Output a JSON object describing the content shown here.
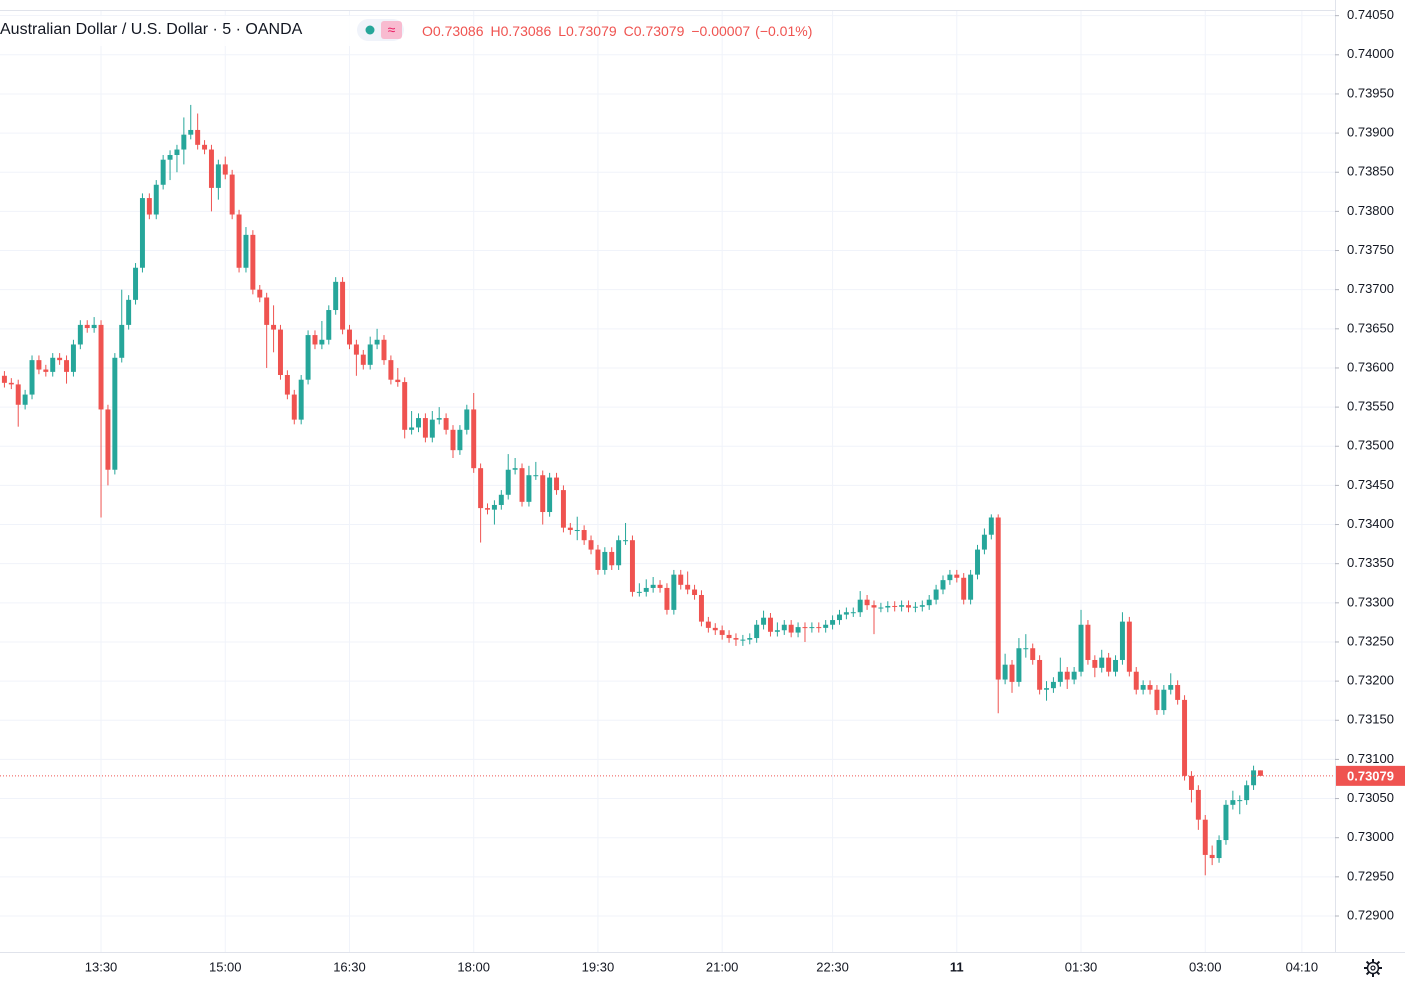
{
  "chart_data": {
    "type": "candlestick",
    "title": "Australian Dollar / U.S. Dollar · 5 · OANDA",
    "legend": {
      "open_key": "O",
      "open": 0.73086,
      "high_key": "H",
      "high": 0.73086,
      "low_key": "L",
      "low": 0.73079,
      "close_key": "C",
      "close": 0.73079,
      "change": {
        "value": -7e-05,
        "label": "−0.00007"
      },
      "change_pct": {
        "value": -0.01,
        "label": "(−0.01%)"
      }
    },
    "up_color": "#26a69a",
    "down_color": "#ef5350",
    "grid": true,
    "last_price": 0.73079,
    "ylim": [
      0.72854,
      0.7407
    ],
    "xlim": [
      -0.64,
      192.8
    ],
    "yticks": [
      {
        "value": 0.729,
        "label": "0.72900"
      },
      {
        "value": 0.7295,
        "label": "0.72950"
      },
      {
        "value": 0.73,
        "label": "0.73000"
      },
      {
        "value": 0.7305,
        "label": "0.73050"
      },
      {
        "value": 0.731,
        "label": "0.73100"
      },
      {
        "value": 0.7315,
        "label": "0.73150"
      },
      {
        "value": 0.732,
        "label": "0.73200"
      },
      {
        "value": 0.7325,
        "label": "0.73250"
      },
      {
        "value": 0.733,
        "label": "0.73300"
      },
      {
        "value": 0.7335,
        "label": "0.73350"
      },
      {
        "value": 0.734,
        "label": "0.73400"
      },
      {
        "value": 0.7345,
        "label": "0.73450"
      },
      {
        "value": 0.735,
        "label": "0.73500"
      },
      {
        "value": 0.7355,
        "label": "0.73550"
      },
      {
        "value": 0.736,
        "label": "0.73600"
      },
      {
        "value": 0.7365,
        "label": "0.73650"
      },
      {
        "value": 0.737,
        "label": "0.73700"
      },
      {
        "value": 0.7375,
        "label": "0.73750"
      },
      {
        "value": 0.738,
        "label": "0.73800"
      },
      {
        "value": 0.7385,
        "label": "0.73850"
      },
      {
        "value": 0.739,
        "label": "0.73900"
      },
      {
        "value": 0.7395,
        "label": "0.73950"
      },
      {
        "value": 0.74,
        "label": "0.74000"
      },
      {
        "value": 0.7405,
        "label": "0.74050"
      }
    ],
    "xticks": [
      {
        "value": 14,
        "label": "13:30"
      },
      {
        "value": 32,
        "label": "15:00"
      },
      {
        "value": 50,
        "label": "16:30"
      },
      {
        "value": 68,
        "label": "18:00"
      },
      {
        "value": 86,
        "label": "19:30"
      },
      {
        "value": 104,
        "label": "21:00"
      },
      {
        "value": 120,
        "label": "22:30"
      },
      {
        "value": 138,
        "label": "11"
      },
      {
        "value": 156,
        "label": "01:30"
      },
      {
        "value": 174,
        "label": "03:00"
      },
      {
        "value": 188,
        "label": "04:10"
      }
    ],
    "candles": [
      [
        0.7359,
        0.73596,
        0.73575,
        0.73581
      ],
      [
        0.73581,
        0.73587,
        0.73573,
        0.73579
      ],
      [
        0.73579,
        0.73585,
        0.73525,
        0.73553
      ],
      [
        0.73553,
        0.73572,
        0.73547,
        0.73566
      ],
      [
        0.73566,
        0.73616,
        0.7356,
        0.7361
      ],
      [
        0.7361,
        0.73616,
        0.73592,
        0.73598
      ],
      [
        0.73598,
        0.73604,
        0.73589,
        0.73595
      ],
      [
        0.73595,
        0.73619,
        0.73589,
        0.73613
      ],
      [
        0.73613,
        0.73619,
        0.73604,
        0.7361
      ],
      [
        0.7361,
        0.73616,
        0.7358,
        0.73595
      ],
      [
        0.73595,
        0.73636,
        0.73589,
        0.7363
      ],
      [
        0.7363,
        0.73661,
        0.73624,
        0.73655
      ],
      [
        0.73655,
        0.73661,
        0.73645,
        0.73651
      ],
      [
        0.73651,
        0.73665,
        0.73645,
        0.73655
      ],
      [
        0.73655,
        0.73661,
        0.73409,
        0.73547
      ],
      [
        0.73547,
        0.73553,
        0.7345,
        0.7347
      ],
      [
        0.7347,
        0.73619,
        0.73464,
        0.73613
      ],
      [
        0.73613,
        0.737,
        0.73607,
        0.73655
      ],
      [
        0.73655,
        0.73693,
        0.73649,
        0.73687
      ],
      [
        0.73687,
        0.73734,
        0.73681,
        0.73728
      ],
      [
        0.73728,
        0.73823,
        0.73722,
        0.73817
      ],
      [
        0.73817,
        0.73823,
        0.7379,
        0.73796
      ],
      [
        0.73796,
        0.7384,
        0.7379,
        0.73834
      ],
      [
        0.73834,
        0.73872,
        0.73828,
        0.73866
      ],
      [
        0.73866,
        0.73878,
        0.7384,
        0.73872
      ],
      [
        0.73872,
        0.73885,
        0.7385,
        0.73879
      ],
      [
        0.73879,
        0.7392,
        0.7386,
        0.73898
      ],
      [
        0.73898,
        0.73936,
        0.73892,
        0.73904
      ],
      [
        0.73904,
        0.73925,
        0.73879,
        0.73885
      ],
      [
        0.73885,
        0.73891,
        0.73873,
        0.73879
      ],
      [
        0.73879,
        0.73885,
        0.738,
        0.7383
      ],
      [
        0.7383,
        0.73866,
        0.73815,
        0.7386
      ],
      [
        0.7386,
        0.7387,
        0.73841,
        0.73847
      ],
      [
        0.73847,
        0.73853,
        0.7379,
        0.73796
      ],
      [
        0.73796,
        0.73802,
        0.73722,
        0.73728
      ],
      [
        0.73728,
        0.7378,
        0.73722,
        0.7377
      ],
      [
        0.7377,
        0.73776,
        0.73694,
        0.737
      ],
      [
        0.737,
        0.73706,
        0.73684,
        0.7369
      ],
      [
        0.7369,
        0.73696,
        0.736,
        0.73655
      ],
      [
        0.73655,
        0.7368,
        0.7362,
        0.73649
      ],
      [
        0.73649,
        0.73655,
        0.73585,
        0.73591
      ],
      [
        0.73591,
        0.73597,
        0.7356,
        0.73566
      ],
      [
        0.73566,
        0.73572,
        0.73528,
        0.73534
      ],
      [
        0.73534,
        0.73591,
        0.73528,
        0.73585
      ],
      [
        0.73585,
        0.73648,
        0.73579,
        0.73642
      ],
      [
        0.73642,
        0.73648,
        0.73624,
        0.7363
      ],
      [
        0.7363,
        0.7366,
        0.73624,
        0.73636
      ],
      [
        0.73636,
        0.7368,
        0.7363,
        0.73674
      ],
      [
        0.73674,
        0.73716,
        0.73668,
        0.7371
      ],
      [
        0.7371,
        0.73716,
        0.73643,
        0.73649
      ],
      [
        0.73649,
        0.73655,
        0.73624,
        0.7363
      ],
      [
        0.7363,
        0.73636,
        0.7359,
        0.73617
      ],
      [
        0.73617,
        0.73623,
        0.73598,
        0.73604
      ],
      [
        0.73604,
        0.7364,
        0.73598,
        0.7363
      ],
      [
        0.7363,
        0.7365,
        0.73624,
        0.73636
      ],
      [
        0.73636,
        0.73642,
        0.73604,
        0.7361
      ],
      [
        0.7361,
        0.73616,
        0.73579,
        0.73585
      ],
      [
        0.73585,
        0.736,
        0.73576,
        0.73582
      ],
      [
        0.73582,
        0.73588,
        0.7351,
        0.73521
      ],
      [
        0.73521,
        0.73545,
        0.73515,
        0.73524
      ],
      [
        0.73524,
        0.73542,
        0.73518,
        0.73536
      ],
      [
        0.73536,
        0.73542,
        0.73505,
        0.73511
      ],
      [
        0.73511,
        0.73545,
        0.73505,
        0.73534
      ],
      [
        0.73534,
        0.7355,
        0.73528,
        0.73536
      ],
      [
        0.73536,
        0.73542,
        0.73515,
        0.73521
      ],
      [
        0.73521,
        0.73527,
        0.73485,
        0.73495
      ],
      [
        0.73495,
        0.73527,
        0.73489,
        0.73521
      ],
      [
        0.73521,
        0.73553,
        0.73515,
        0.73547
      ],
      [
        0.73547,
        0.73568,
        0.73466,
        0.73472
      ],
      [
        0.73472,
        0.73478,
        0.73377,
        0.73421
      ],
      [
        0.73421,
        0.73427,
        0.73413,
        0.73419
      ],
      [
        0.73419,
        0.73431,
        0.734,
        0.73425
      ],
      [
        0.73425,
        0.73444,
        0.73419,
        0.73438
      ],
      [
        0.73438,
        0.7349,
        0.73432,
        0.7347
      ],
      [
        0.7347,
        0.73485,
        0.73464,
        0.73472
      ],
      [
        0.73472,
        0.73478,
        0.73423,
        0.73429
      ],
      [
        0.73429,
        0.73475,
        0.73423,
        0.73463
      ],
      [
        0.73463,
        0.7348,
        0.73457,
        0.73463
      ],
      [
        0.73463,
        0.73469,
        0.734,
        0.73416
      ],
      [
        0.73416,
        0.73466,
        0.7341,
        0.7346
      ],
      [
        0.7346,
        0.73466,
        0.73438,
        0.73444
      ],
      [
        0.73444,
        0.7345,
        0.7339,
        0.73396
      ],
      [
        0.73396,
        0.73402,
        0.73387,
        0.73393
      ],
      [
        0.73393,
        0.7341,
        0.7338,
        0.73393
      ],
      [
        0.73393,
        0.73399,
        0.73374,
        0.7338
      ],
      [
        0.7338,
        0.73386,
        0.73362,
        0.73368
      ],
      [
        0.73368,
        0.73374,
        0.73336,
        0.73342
      ],
      [
        0.73342,
        0.73371,
        0.73336,
        0.73365
      ],
      [
        0.73365,
        0.73371,
        0.73342,
        0.73348
      ],
      [
        0.73348,
        0.73386,
        0.73342,
        0.7338
      ],
      [
        0.7338,
        0.73402,
        0.73374,
        0.7338
      ],
      [
        0.7338,
        0.73386,
        0.73308,
        0.73314
      ],
      [
        0.73314,
        0.73325,
        0.73308,
        0.73314
      ],
      [
        0.73314,
        0.7333,
        0.73308,
        0.73319
      ],
      [
        0.73319,
        0.73333,
        0.73313,
        0.73323
      ],
      [
        0.73323,
        0.73329,
        0.73313,
        0.73319
      ],
      [
        0.73319,
        0.73325,
        0.73285,
        0.73291
      ],
      [
        0.73291,
        0.73342,
        0.73285,
        0.73336
      ],
      [
        0.73336,
        0.73342,
        0.73317,
        0.73323
      ],
      [
        0.73323,
        0.7334,
        0.73311,
        0.73317
      ],
      [
        0.73317,
        0.73323,
        0.73304,
        0.7331
      ],
      [
        0.7331,
        0.73316,
        0.7327,
        0.73276
      ],
      [
        0.73276,
        0.73282,
        0.73262,
        0.73268
      ],
      [
        0.73268,
        0.73274,
        0.73259,
        0.73265
      ],
      [
        0.73265,
        0.73271,
        0.73253,
        0.73259
      ],
      [
        0.73259,
        0.73265,
        0.73249,
        0.73255
      ],
      [
        0.73255,
        0.73261,
        0.73245,
        0.73253
      ],
      [
        0.73253,
        0.73259,
        0.73245,
        0.73253
      ],
      [
        0.73253,
        0.73261,
        0.73247,
        0.73255
      ],
      [
        0.73255,
        0.73278,
        0.73249,
        0.73272
      ],
      [
        0.73272,
        0.7329,
        0.73266,
        0.73281
      ],
      [
        0.73281,
        0.73287,
        0.73257,
        0.73263
      ],
      [
        0.73263,
        0.73275,
        0.73257,
        0.73265
      ],
      [
        0.73265,
        0.73278,
        0.73259,
        0.73272
      ],
      [
        0.73272,
        0.73278,
        0.73256,
        0.73262
      ],
      [
        0.73262,
        0.73275,
        0.73256,
        0.73269
      ],
      [
        0.73269,
        0.73275,
        0.7325,
        0.73268
      ],
      [
        0.73268,
        0.73275,
        0.73262,
        0.73269
      ],
      [
        0.73269,
        0.73275,
        0.73262,
        0.73268
      ],
      [
        0.73268,
        0.73278,
        0.73262,
        0.73272
      ],
      [
        0.73272,
        0.73284,
        0.73266,
        0.73278
      ],
      [
        0.73278,
        0.73291,
        0.73272,
        0.73285
      ],
      [
        0.73285,
        0.73294,
        0.73279,
        0.73288
      ],
      [
        0.73288,
        0.73294,
        0.73282,
        0.73288
      ],
      [
        0.73288,
        0.73315,
        0.73282,
        0.73304
      ],
      [
        0.73304,
        0.7331,
        0.73291,
        0.73297
      ],
      [
        0.73297,
        0.73303,
        0.7326,
        0.73294
      ],
      [
        0.73294,
        0.733,
        0.73288,
        0.73294
      ],
      [
        0.73294,
        0.73302,
        0.73288,
        0.73296
      ],
      [
        0.73296,
        0.73302,
        0.73289,
        0.73295
      ],
      [
        0.73295,
        0.73303,
        0.73289,
        0.73297
      ],
      [
        0.73297,
        0.73303,
        0.73288,
        0.73294
      ],
      [
        0.73294,
        0.73301,
        0.73288,
        0.73295
      ],
      [
        0.73295,
        0.73303,
        0.73289,
        0.73297
      ],
      [
        0.73297,
        0.7331,
        0.73291,
        0.73304
      ],
      [
        0.73304,
        0.73323,
        0.73298,
        0.73317
      ],
      [
        0.73317,
        0.73335,
        0.73311,
        0.73329
      ],
      [
        0.73329,
        0.73342,
        0.73323,
        0.73336
      ],
      [
        0.73336,
        0.73342,
        0.73326,
        0.73332
      ],
      [
        0.73332,
        0.73338,
        0.73298,
        0.73304
      ],
      [
        0.73304,
        0.73342,
        0.73298,
        0.73336
      ],
      [
        0.73336,
        0.73374,
        0.7333,
        0.73368
      ],
      [
        0.73368,
        0.73395,
        0.73362,
        0.73387
      ],
      [
        0.73387,
        0.73413,
        0.73381,
        0.73409
      ],
      [
        0.73409,
        0.73413,
        0.73159,
        0.73202
      ],
      [
        0.73202,
        0.73235,
        0.73196,
        0.73221
      ],
      [
        0.73221,
        0.73227,
        0.73185,
        0.73199
      ],
      [
        0.73199,
        0.73255,
        0.73193,
        0.73242
      ],
      [
        0.73242,
        0.7326,
        0.7323,
        0.73242
      ],
      [
        0.73242,
        0.73248,
        0.73221,
        0.73227
      ],
      [
        0.73227,
        0.73233,
        0.73183,
        0.73189
      ],
      [
        0.73189,
        0.732,
        0.73175,
        0.73191
      ],
      [
        0.73191,
        0.73205,
        0.73185,
        0.73199
      ],
      [
        0.73199,
        0.7323,
        0.73193,
        0.73212
      ],
      [
        0.73212,
        0.73218,
        0.7319,
        0.73202
      ],
      [
        0.73202,
        0.73218,
        0.73196,
        0.73212
      ],
      [
        0.73212,
        0.73291,
        0.73206,
        0.73272
      ],
      [
        0.73272,
        0.73278,
        0.73221,
        0.73227
      ],
      [
        0.73227,
        0.73233,
        0.73205,
        0.73217
      ],
      [
        0.73217,
        0.7324,
        0.73211,
        0.7323
      ],
      [
        0.7323,
        0.73236,
        0.73206,
        0.73212
      ],
      [
        0.73212,
        0.73233,
        0.73206,
        0.73227
      ],
      [
        0.73227,
        0.73288,
        0.73221,
        0.73276
      ],
      [
        0.73276,
        0.73282,
        0.73206,
        0.73212
      ],
      [
        0.73212,
        0.73218,
        0.73183,
        0.73189
      ],
      [
        0.73189,
        0.73201,
        0.73183,
        0.73195
      ],
      [
        0.73195,
        0.73201,
        0.73183,
        0.73189
      ],
      [
        0.73189,
        0.73195,
        0.73157,
        0.73163
      ],
      [
        0.73163,
        0.73195,
        0.73157,
        0.73189
      ],
      [
        0.73189,
        0.7321,
        0.73183,
        0.73195
      ],
      [
        0.73195,
        0.73201,
        0.7317,
        0.73176
      ],
      [
        0.73176,
        0.73182,
        0.73073,
        0.73079
      ],
      [
        0.73079,
        0.73085,
        0.73045,
        0.73061
      ],
      [
        0.73061,
        0.73067,
        0.7301,
        0.73023
      ],
      [
        0.73023,
        0.73029,
        0.72952,
        0.72978
      ],
      [
        0.72978,
        0.7299,
        0.72965,
        0.72974
      ],
      [
        0.72974,
        0.73003,
        0.72968,
        0.72997
      ],
      [
        0.72997,
        0.73048,
        0.72991,
        0.73042
      ],
      [
        0.73042,
        0.7306,
        0.73036,
        0.73048
      ],
      [
        0.73048,
        0.73054,
        0.7303,
        0.73048
      ],
      [
        0.73048,
        0.73073,
        0.73042,
        0.73067
      ],
      [
        0.73067,
        0.73092,
        0.73061,
        0.73086
      ],
      [
        0.73086,
        0.73086,
        0.73079,
        0.73079
      ]
    ]
  }
}
